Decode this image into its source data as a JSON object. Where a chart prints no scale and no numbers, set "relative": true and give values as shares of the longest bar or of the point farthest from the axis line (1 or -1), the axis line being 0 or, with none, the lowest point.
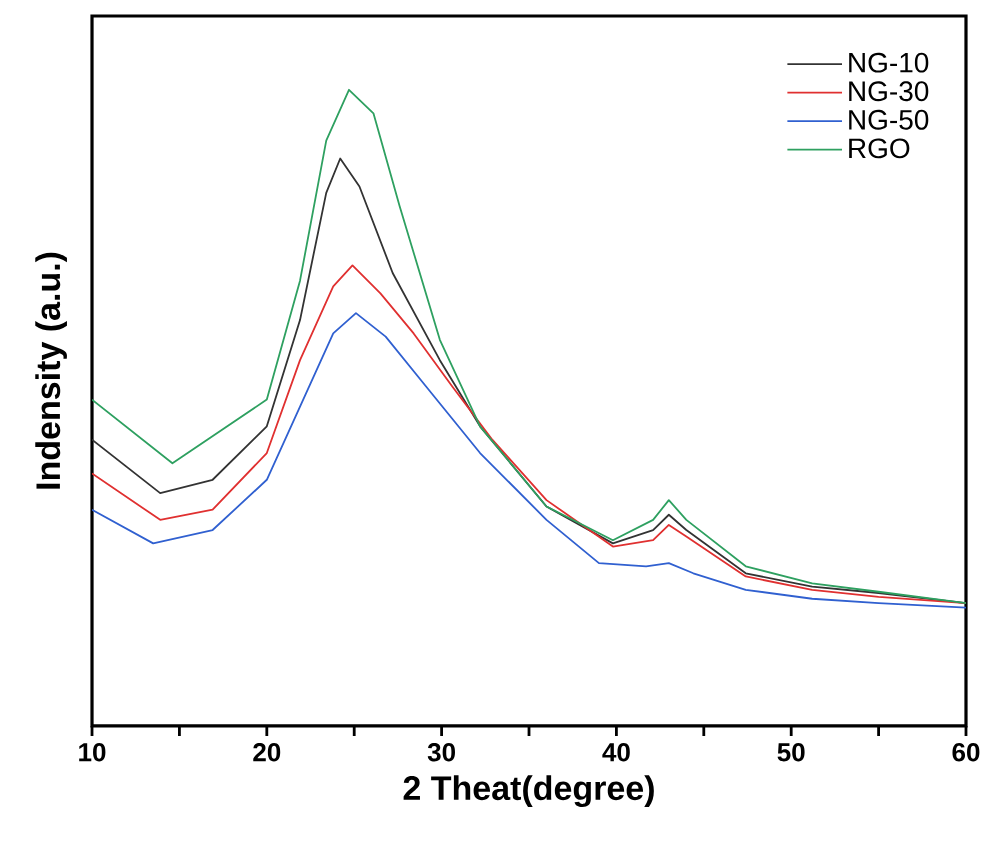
{
  "chart_data": {
    "type": "line",
    "relative": true,
    "xlabel": "2 Theat(degree)",
    "ylabel": "Indensity (a.u.)",
    "xlim": [
      10,
      60
    ],
    "xticks": [
      10,
      {
        "value": 15,
        "label": null
      },
      20,
      {
        "value": 25,
        "label": null
      },
      30,
      {
        "value": 35,
        "label": null
      },
      40,
      {
        "value": 45,
        "label": null
      },
      50,
      {
        "value": 55,
        "label": null
      },
      60
    ],
    "legend": "top right",
    "grid": false,
    "marker": "none",
    "line_style": "solid",
    "tick_labels": "x",
    "series": [
      {
        "name": "NG-10",
        "color": "#333333",
        "x": [
          10,
          13.9,
          16.9,
          20.0,
          21.9,
          23.4,
          24.2,
          25.3,
          27.2,
          29.9,
          32.2,
          36.0,
          39.8,
          42.1,
          43.0,
          44.0,
          47.4,
          51.2,
          55.0,
          60
        ],
        "values": [
          0.45,
          0.366,
          0.387,
          0.471,
          0.638,
          0.838,
          0.892,
          0.848,
          0.712,
          0.575,
          0.471,
          0.345,
          0.287,
          0.308,
          0.332,
          0.308,
          0.24,
          0.219,
          0.209,
          0.193
        ]
      },
      {
        "name": "NG-30",
        "color": "#e03030",
        "x": [
          10,
          13.9,
          16.9,
          20.0,
          21.9,
          23.8,
          24.9,
          26.5,
          28.4,
          30.6,
          32.9,
          36.0,
          39.8,
          42.1,
          43.0,
          44.0,
          47.4,
          51.2,
          55.0,
          60
        ],
        "values": [
          0.397,
          0.324,
          0.34,
          0.429,
          0.575,
          0.691,
          0.724,
          0.68,
          0.617,
          0.534,
          0.45,
          0.355,
          0.282,
          0.292,
          0.316,
          0.298,
          0.235,
          0.214,
          0.203,
          0.193
        ]
      },
      {
        "name": "NG-50",
        "color": "#3060d0",
        "x": [
          10,
          13.5,
          16.9,
          20.0,
          21.9,
          23.8,
          25.1,
          26.8,
          29.1,
          32.2,
          36.0,
          39.0,
          41.7,
          43.0,
          44.4,
          47.4,
          51.2,
          55.0,
          60
        ],
        "values": [
          0.34,
          0.287,
          0.308,
          0.387,
          0.502,
          0.617,
          0.649,
          0.612,
          0.534,
          0.429,
          0.324,
          0.256,
          0.251,
          0.256,
          0.24,
          0.214,
          0.2,
          0.193,
          0.186
        ]
      },
      {
        "name": "RGO",
        "color": "#2ea060",
        "x": [
          10,
          14.6,
          20.0,
          21.9,
          23.4,
          24.7,
          26.1,
          27.6,
          29.9,
          32.2,
          36.0,
          39.8,
          42.1,
          43.0,
          44.0,
          47.4,
          51.2,
          55.0,
          60
        ],
        "values": [
          0.513,
          0.413,
          0.513,
          0.7,
          0.92,
          1.0,
          0.963,
          0.817,
          0.607,
          0.471,
          0.345,
          0.292,
          0.324,
          0.355,
          0.324,
          0.251,
          0.224,
          0.211,
          0.193
        ]
      }
    ]
  }
}
